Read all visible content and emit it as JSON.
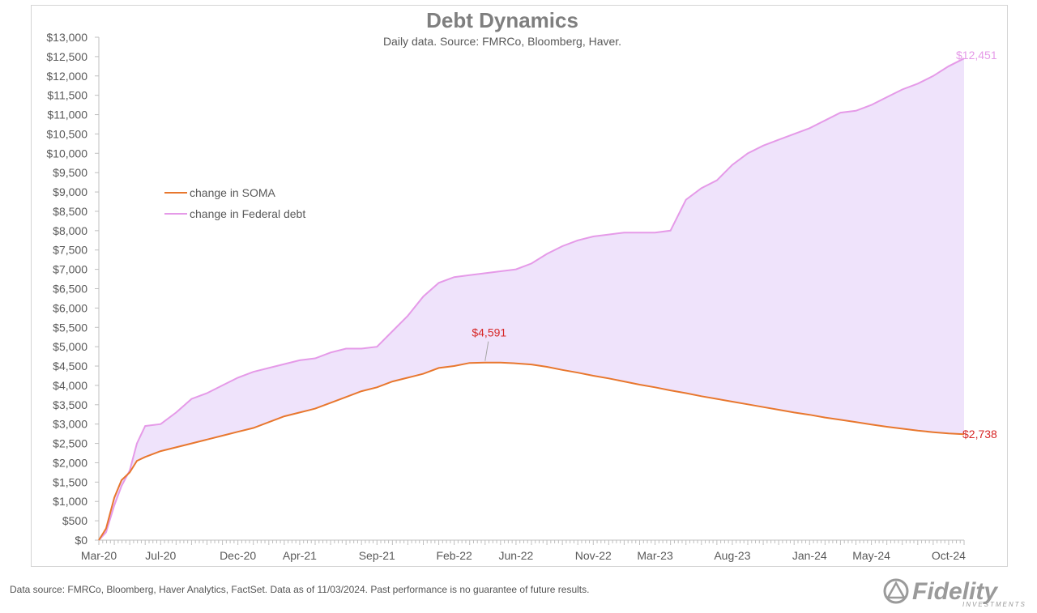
{
  "footer": {
    "note": "Data source: FMRCo, Bloomberg, Haver Analytics, FactSet. Data as of 11/03/2024. Past performance is no guarantee of future results.",
    "logo_text": "Fidelity",
    "logo_subtext": "INVESTMENTS"
  },
  "colors": {
    "soma": "#e8772e",
    "debt": "#e59ae8",
    "fill": "#efe3fb",
    "annotation": "#d72828",
    "debt_label": "#e59ae8",
    "title": "#7f7f7f",
    "axis_text": "#595959",
    "logo": "#9a9a9a"
  },
  "chart_data": {
    "type": "line",
    "title": "Debt Dynamics",
    "subtitle": "Daily data.  Source: FMRCo, Bloomberg, Haver.",
    "xlabel": "",
    "ylabel": "",
    "ylim": [
      0,
      13000
    ],
    "xlim": [
      "2020-03",
      "2024-11"
    ],
    "y_ticks": [
      "$0",
      "$500",
      "$1,000",
      "$1,500",
      "$2,000",
      "$2,500",
      "$3,000",
      "$3,500",
      "$4,000",
      "$4,500",
      "$5,000",
      "$5,500",
      "$6,000",
      "$6,500",
      "$7,000",
      "$7,500",
      "$8,000",
      "$8,500",
      "$9,000",
      "$9,500",
      "$10,000",
      "$10,500",
      "$11,000",
      "$11,500",
      "$12,000",
      "$12,500",
      "$13,000"
    ],
    "x_ticks": [
      "Mar-20",
      "Jul-20",
      "Dec-20",
      "Apr-21",
      "Sep-21",
      "Feb-22",
      "Jun-22",
      "Nov-22",
      "Mar-23",
      "Aug-23",
      "Jan-24",
      "May-24",
      "Oct-24"
    ],
    "grid": false,
    "legend_position": "upper-left",
    "shaded_area_between_series": true,
    "series": [
      {
        "name": "change in SOMA",
        "x": [
          "2020-03-01",
          "2020-03-15",
          "2020-04-01",
          "2020-04-15",
          "2020-05-01",
          "2020-05-15",
          "2020-06-01",
          "2020-07-01",
          "2020-08-01",
          "2020-09-01",
          "2020-10-01",
          "2020-11-01",
          "2020-12-01",
          "2021-01-01",
          "2021-02-01",
          "2021-03-01",
          "2021-04-01",
          "2021-05-01",
          "2021-06-01",
          "2021-07-01",
          "2021-08-01",
          "2021-09-01",
          "2021-10-01",
          "2021-11-01",
          "2021-12-01",
          "2022-01-01",
          "2022-02-01",
          "2022-03-01",
          "2022-04-01",
          "2022-05-01",
          "2022-06-01",
          "2022-07-01",
          "2022-08-01",
          "2022-09-01",
          "2022-10-01",
          "2022-11-01",
          "2022-12-01",
          "2023-01-01",
          "2023-02-01",
          "2023-03-01",
          "2023-04-01",
          "2023-05-01",
          "2023-06-01",
          "2023-07-01",
          "2023-08-01",
          "2023-09-01",
          "2023-10-01",
          "2023-11-01",
          "2023-12-01",
          "2024-01-01",
          "2024-02-01",
          "2024-03-01",
          "2024-04-01",
          "2024-05-01",
          "2024-06-01",
          "2024-07-01",
          "2024-08-01",
          "2024-09-01",
          "2024-10-01",
          "2024-11-01"
        ],
        "values": [
          0,
          300,
          1100,
          1550,
          1750,
          2050,
          2150,
          2300,
          2400,
          2500,
          2600,
          2700,
          2800,
          2900,
          3050,
          3200,
          3300,
          3400,
          3550,
          3700,
          3850,
          3950,
          4100,
          4200,
          4300,
          4450,
          4500,
          4580,
          4591,
          4590,
          4570,
          4540,
          4480,
          4400,
          4330,
          4250,
          4180,
          4100,
          4020,
          3950,
          3870,
          3800,
          3720,
          3650,
          3580,
          3510,
          3440,
          3370,
          3300,
          3240,
          3170,
          3110,
          3050,
          2990,
          2930,
          2880,
          2830,
          2790,
          2760,
          2738
        ]
      },
      {
        "name": "change in Federal debt",
        "x": [
          "2020-03-01",
          "2020-03-15",
          "2020-04-01",
          "2020-04-15",
          "2020-05-01",
          "2020-05-15",
          "2020-06-01",
          "2020-07-01",
          "2020-08-01",
          "2020-09-01",
          "2020-10-01",
          "2020-11-01",
          "2020-12-01",
          "2021-01-01",
          "2021-02-01",
          "2021-03-01",
          "2021-04-01",
          "2021-05-01",
          "2021-06-01",
          "2021-07-01",
          "2021-08-01",
          "2021-09-01",
          "2021-10-01",
          "2021-11-01",
          "2021-12-01",
          "2022-01-01",
          "2022-02-01",
          "2022-03-01",
          "2022-04-01",
          "2022-05-01",
          "2022-06-01",
          "2022-07-01",
          "2022-08-01",
          "2022-09-01",
          "2022-10-01",
          "2022-11-01",
          "2022-12-01",
          "2023-01-01",
          "2023-02-01",
          "2023-03-01",
          "2023-04-01",
          "2023-05-01",
          "2023-06-01",
          "2023-07-01",
          "2023-08-01",
          "2023-09-01",
          "2023-10-01",
          "2023-11-01",
          "2023-12-01",
          "2024-01-01",
          "2024-02-01",
          "2024-03-01",
          "2024-04-01",
          "2024-05-01",
          "2024-06-01",
          "2024-07-01",
          "2024-08-01",
          "2024-09-01",
          "2024-10-01",
          "2024-11-01"
        ],
        "values": [
          0,
          200,
          900,
          1400,
          1800,
          2500,
          2950,
          3000,
          3300,
          3650,
          3800,
          4000,
          4200,
          4350,
          4450,
          4550,
          4650,
          4700,
          4850,
          4950,
          4950,
          5000,
          5400,
          5800,
          6300,
          6650,
          6800,
          6850,
          6900,
          6950,
          7000,
          7150,
          7400,
          7600,
          7750,
          7850,
          7900,
          7950,
          7950,
          7950,
          8000,
          8800,
          9100,
          9300,
          9700,
          10000,
          10200,
          10350,
          10500,
          10650,
          10850,
          11050,
          11100,
          11250,
          11450,
          11650,
          11800,
          12000,
          12250,
          12451
        ]
      }
    ],
    "annotations": [
      {
        "text": "$4,591",
        "series": "change in SOMA",
        "x": "2022-04-01",
        "y": 4591
      },
      {
        "text": "$12,451",
        "series": "change in Federal debt",
        "x": "2024-11-01",
        "y": 12451
      },
      {
        "text": "$2,738",
        "series": "change in SOMA",
        "x": "2024-11-01",
        "y": 2738
      }
    ]
  }
}
